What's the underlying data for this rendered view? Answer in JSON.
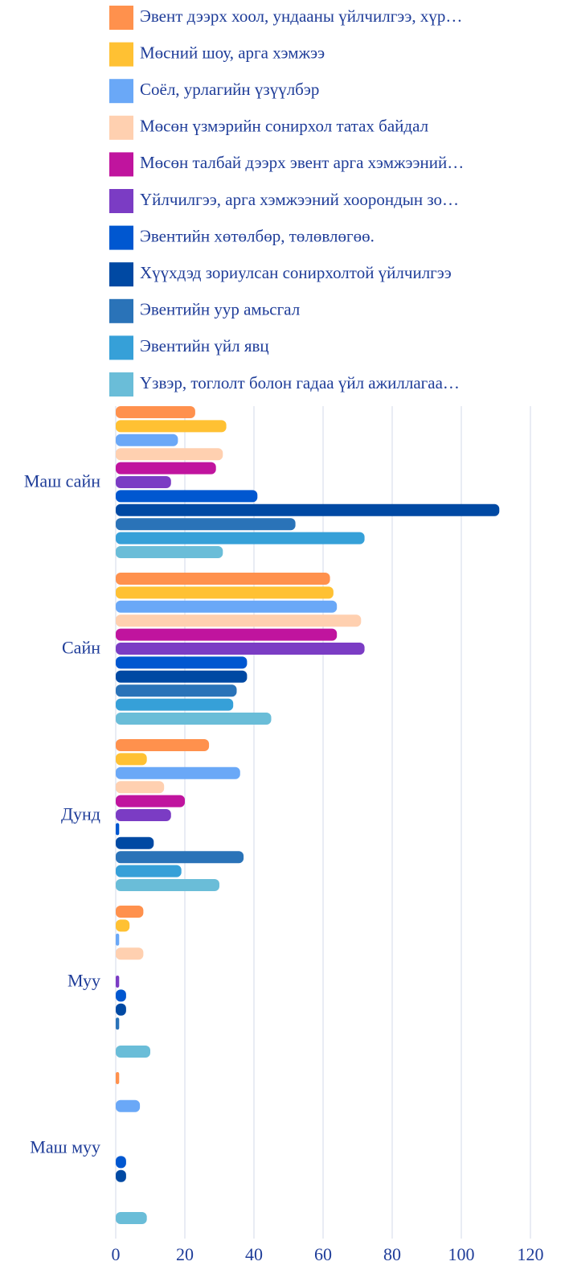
{
  "chart_data": {
    "type": "barh",
    "categories": [
      "Маш сайн",
      "Сайн",
      "Дунд",
      "Муу",
      "Маш муу"
    ],
    "series": [
      {
        "name": "Эвент дээрх хоол, ундааны үйлчилгээ, хүр…",
        "color": "#ff914d",
        "values": [
          23,
          62,
          27,
          8,
          1
        ]
      },
      {
        "name": "Мөсний шоу, арга хэмжээ",
        "color": "#ffc133",
        "values": [
          32,
          63,
          9,
          4,
          0
        ]
      },
      {
        "name": "Соёл, урлагийн үзүүлбэр",
        "color": "#6aa8f7",
        "values": [
          18,
          64,
          36,
          1,
          7
        ]
      },
      {
        "name": "Мөсөн үзмэрийн сонирхол татах байдал",
        "color": "#ffd0b0",
        "values": [
          31,
          71,
          14,
          8,
          0
        ]
      },
      {
        "name": "Мөсөн талбай дээрх эвент арга хэмжээний…",
        "color": "#c0149e",
        "values": [
          29,
          64,
          20,
          0,
          0
        ]
      },
      {
        "name": "Үйлчилгээ, арга хэмжээний хоорондын зо…",
        "color": "#7b3cc4",
        "values": [
          16,
          72,
          16,
          1,
          0
        ]
      },
      {
        "name": "Эвентийн хөтөлбөр, төлөвлөгөө.",
        "color": "#0057d0",
        "values": [
          41,
          38,
          1,
          3,
          3
        ]
      },
      {
        "name": "Хүүхдэд зориулсан сонирхолтой үйлчилгээ",
        "color": "#0049a3",
        "values": [
          111,
          38,
          11,
          3,
          3
        ]
      },
      {
        "name": "Эвентийн уур амьсгал",
        "color": "#2a73b8",
        "values": [
          52,
          35,
          37,
          1,
          0
        ]
      },
      {
        "name": "Эвентийн үйл явц",
        "color": "#36a0d8",
        "values": [
          72,
          34,
          19,
          0,
          0
        ]
      },
      {
        "name": "Үзвэр, тоглолт болон гадаа үйл ажиллагаа…",
        "color": "#6abdd8",
        "values": [
          31,
          45,
          30,
          10,
          9
        ]
      }
    ],
    "xlim": [
      0,
      120
    ],
    "xticks": [
      0,
      20,
      40,
      60,
      80,
      100,
      120
    ],
    "grid": true
  }
}
